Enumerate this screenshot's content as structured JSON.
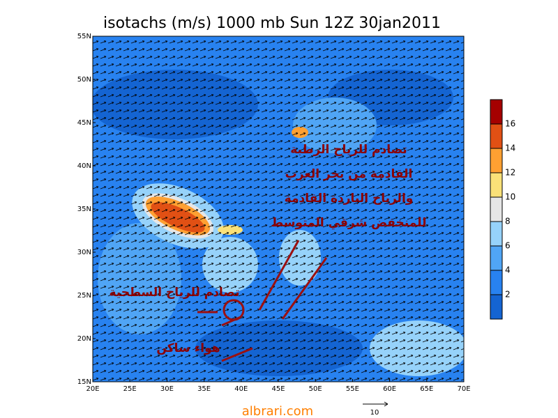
{
  "title": "isotachs (m/s) 1000 mb Sun 12Z 30jan2011",
  "map": {
    "lon_ticks": [
      {
        "value": 20,
        "label": "20E"
      },
      {
        "value": 25,
        "label": "25E"
      },
      {
        "value": 30,
        "label": "30E"
      },
      {
        "value": 35,
        "label": "35E"
      },
      {
        "value": 40,
        "label": "40E"
      },
      {
        "value": 45,
        "label": "45E"
      },
      {
        "value": 50,
        "label": "50E"
      },
      {
        "value": 55,
        "label": "55E"
      },
      {
        "value": 60,
        "label": "60E"
      },
      {
        "value": 65,
        "label": "65E"
      },
      {
        "value": 70,
        "label": "70E"
      }
    ],
    "lat_ticks": [
      {
        "value": 15,
        "label": "15N"
      },
      {
        "value": 20,
        "label": "20N"
      },
      {
        "value": 25,
        "label": "25N"
      },
      {
        "value": 30,
        "label": "30N"
      },
      {
        "value": 35,
        "label": "35N"
      },
      {
        "value": 40,
        "label": "40N"
      },
      {
        "value": 45,
        "label": "45N"
      },
      {
        "value": 50,
        "label": "50N"
      },
      {
        "value": 55,
        "label": "55N"
      }
    ],
    "lonlim": [
      20,
      70
    ],
    "latlim": [
      15,
      55
    ]
  },
  "colorbar": {
    "clim": [
      0,
      18
    ],
    "ticks": [
      2,
      4,
      6,
      8,
      10,
      12,
      14,
      16
    ],
    "colors": [
      "#1464d2",
      "#2882f0",
      "#50a5f5",
      "#96d2fa",
      "#e6e6e6",
      "#fae178",
      "#ffa032",
      "#e15014",
      "#a50000"
    ]
  },
  "annotations": [
    "تصادم للرياح الرطبة",
    "القادمة من بحر العرب",
    "والرياح الباردة القادمة",
    "للمنخفض شرقي المتوسط",
    "تصادم للرياح السطحية",
    "هواء ساكن"
  ],
  "reference_vector": "10",
  "watermark": "albrari.com"
}
